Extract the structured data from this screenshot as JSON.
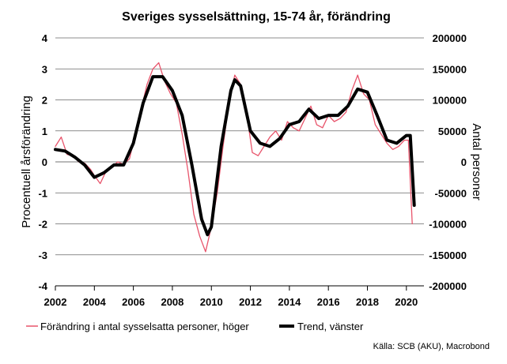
{
  "chart_data": {
    "type": "line",
    "title": "Sveriges sysselsättning, 15-74 år, förändring",
    "ylabel_left": "Procentuell årsförändring",
    "ylabel_right": "Antal personer",
    "xlabel": "",
    "x_range": [
      2002,
      2020.9
    ],
    "ylim_left": [
      -4,
      4
    ],
    "ylim_right": [
      -200000,
      200000
    ],
    "x_ticks": [
      "2002",
      "2004",
      "2006",
      "2008",
      "2010",
      "2012",
      "2014",
      "2016",
      "2018",
      "2020"
    ],
    "x_tick_values": [
      2002,
      2004,
      2006,
      2008,
      2010,
      2012,
      2014,
      2016,
      2018,
      2020
    ],
    "y_ticks_left": [
      "4",
      "3",
      "2",
      "1",
      "0",
      "-1",
      "-2",
      "-3",
      "-4"
    ],
    "y_tick_values_left": [
      4,
      3,
      2,
      1,
      0,
      -1,
      -2,
      -3,
      -4
    ],
    "y_ticks_right": [
      "200000",
      "150000",
      "100000",
      "50000",
      "0",
      "-50000",
      "-100000",
      "-150000",
      "-200000"
    ],
    "y_tick_values_right": [
      200000,
      150000,
      100000,
      50000,
      0,
      -50000,
      -100000,
      -150000,
      -200000
    ],
    "grid": true,
    "legend_position": "bottom",
    "source": "Källa: SCB (AKU), Macrobond",
    "series": [
      {
        "name": "Förändring i antal sysselsatta personer, höger",
        "axis": "right",
        "color": "#e8546b",
        "style": "thin",
        "x": [
          2002.0,
          2002.3,
          2002.6,
          2002.9,
          2003.2,
          2003.5,
          2003.8,
          2004.0,
          2004.3,
          2004.6,
          2004.9,
          2005.2,
          2005.5,
          2005.8,
          2006.1,
          2006.4,
          2006.7,
          2007.0,
          2007.3,
          2007.6,
          2007.9,
          2008.2,
          2008.5,
          2008.8,
          2009.1,
          2009.4,
          2009.7,
          2010.0,
          2010.3,
          2010.6,
          2010.9,
          2011.2,
          2011.5,
          2011.8,
          2012.1,
          2012.4,
          2012.7,
          2013.0,
          2013.3,
          2013.6,
          2013.9,
          2014.2,
          2014.5,
          2014.8,
          2015.1,
          2015.4,
          2015.7,
          2016.0,
          2016.3,
          2016.6,
          2016.9,
          2017.2,
          2017.5,
          2017.8,
          2018.1,
          2018.4,
          2018.7,
          2019.0,
          2019.3,
          2019.6,
          2019.9,
          2020.1,
          2020.3
        ],
        "values": [
          25000,
          40000,
          12000,
          10000,
          0,
          -2000,
          -12000,
          -22000,
          -35000,
          -15000,
          -8000,
          0,
          -4000,
          5000,
          45000,
          85000,
          125000,
          150000,
          160000,
          130000,
          110000,
          95000,
          45000,
          -15000,
          -85000,
          -120000,
          -145000,
          -105000,
          -50000,
          25000,
          95000,
          140000,
          125000,
          80000,
          15000,
          10000,
          25000,
          40000,
          50000,
          35000,
          65000,
          55000,
          50000,
          70000,
          90000,
          60000,
          55000,
          75000,
          65000,
          70000,
          80000,
          115000,
          140000,
          110000,
          100000,
          60000,
          45000,
          30000,
          20000,
          25000,
          35000,
          35000,
          -100000
        ]
      },
      {
        "name": "Trend, vänster",
        "axis": "left",
        "color": "#000000",
        "style": "thick",
        "x": [
          2002.0,
          2002.5,
          2003.0,
          2003.5,
          2004.0,
          2004.5,
          2005.0,
          2005.5,
          2006.0,
          2006.5,
          2007.0,
          2007.5,
          2008.0,
          2008.5,
          2009.0,
          2009.5,
          2009.8,
          2010.0,
          2010.5,
          2011.0,
          2011.2,
          2011.5,
          2012.0,
          2012.5,
          2013.0,
          2013.5,
          2014.0,
          2014.5,
          2015.0,
          2015.5,
          2016.0,
          2016.5,
          2017.0,
          2017.5,
          2018.0,
          2018.5,
          2019.0,
          2019.5,
          2020.0,
          2020.2,
          2020.4
        ],
        "values": [
          0.4,
          0.35,
          0.15,
          -0.1,
          -0.5,
          -0.35,
          -0.1,
          -0.1,
          0.6,
          1.9,
          2.75,
          2.75,
          2.3,
          1.5,
          -0.1,
          -1.85,
          -2.35,
          -2.1,
          0.5,
          2.3,
          2.65,
          2.45,
          1.0,
          0.6,
          0.5,
          0.75,
          1.2,
          1.3,
          1.7,
          1.4,
          1.5,
          1.5,
          1.8,
          2.35,
          2.25,
          1.5,
          0.7,
          0.6,
          0.85,
          0.85,
          -1.4
        ]
      }
    ]
  }
}
